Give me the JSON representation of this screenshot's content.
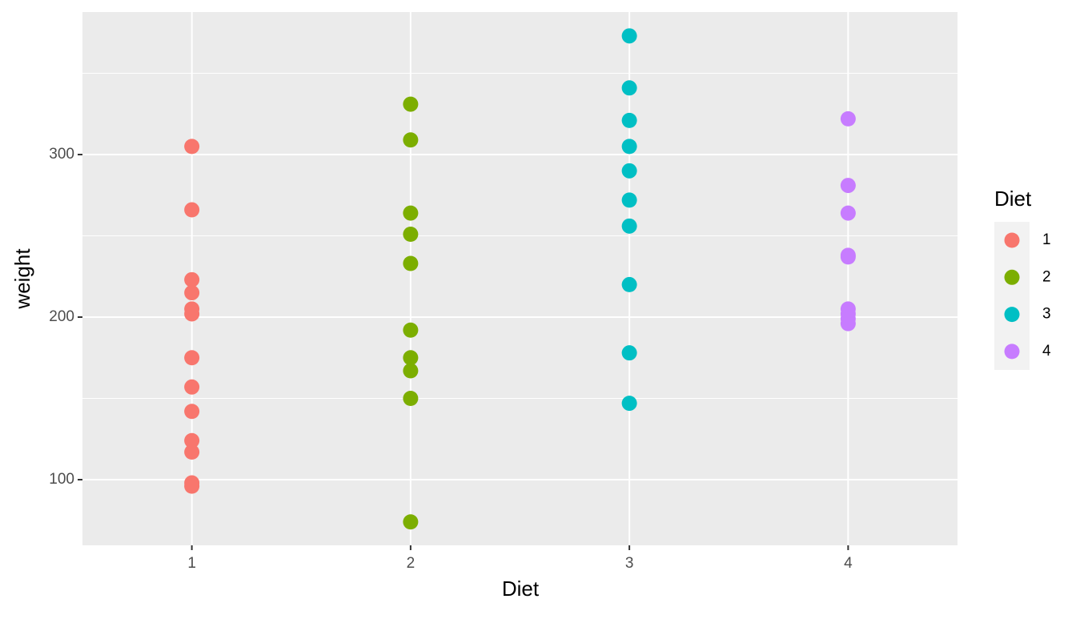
{
  "chart_data": {
    "type": "strip",
    "x_label": "Diet",
    "y_label": "weight",
    "categories": [
      "1",
      "2",
      "3",
      "4"
    ],
    "series": [
      {
        "name": "1",
        "color": "#F8766D",
        "values": [
          305,
          266,
          223,
          215,
          205,
          202,
          175,
          157,
          142,
          124,
          117,
          98,
          96
        ]
      },
      {
        "name": "2",
        "color": "#7CAE00",
        "values": [
          331,
          309,
          264,
          251,
          233,
          192,
          175,
          167,
          150,
          74
        ]
      },
      {
        "name": "3",
        "color": "#00BFC4",
        "values": [
          373,
          341,
          321,
          305,
          290,
          272,
          256,
          220,
          178,
          147
        ]
      },
      {
        "name": "4",
        "color": "#C77CFF",
        "values": [
          322,
          281,
          264,
          238,
          237,
          205,
          202,
          199,
          196
        ]
      }
    ],
    "ylim": [
      59.6,
      387.7
    ],
    "yticks": [
      100,
      200,
      300
    ],
    "yminor": [
      150,
      250,
      350
    ],
    "grid": true,
    "legend_title": "Diet",
    "legend": "right"
  }
}
